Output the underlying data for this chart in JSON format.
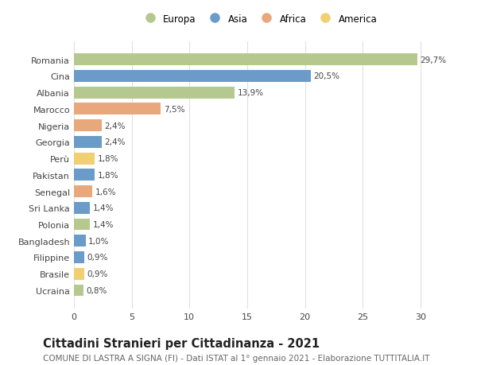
{
  "countries": [
    "Romania",
    "Cina",
    "Albania",
    "Marocco",
    "Nigeria",
    "Georgia",
    "Perù",
    "Pakistan",
    "Senegal",
    "Sri Lanka",
    "Polonia",
    "Bangladesh",
    "Filippine",
    "Brasile",
    "Ucraina"
  ],
  "values": [
    29.7,
    20.5,
    13.9,
    7.5,
    2.4,
    2.4,
    1.8,
    1.8,
    1.6,
    1.4,
    1.4,
    1.0,
    0.9,
    0.9,
    0.8
  ],
  "labels": [
    "29,7%",
    "20,5%",
    "13,9%",
    "7,5%",
    "2,4%",
    "2,4%",
    "1,8%",
    "1,8%",
    "1,6%",
    "1,4%",
    "1,4%",
    "1,0%",
    "0,9%",
    "0,9%",
    "0,8%"
  ],
  "continents": [
    "Europa",
    "Asia",
    "Europa",
    "Africa",
    "Africa",
    "Asia",
    "America",
    "Asia",
    "Africa",
    "Asia",
    "Europa",
    "Asia",
    "Asia",
    "America",
    "Europa"
  ],
  "continent_colors": {
    "Europa": "#b5c98e",
    "Asia": "#6b9bc8",
    "Africa": "#e8a87c",
    "America": "#f0d070"
  },
  "legend_order": [
    "Europa",
    "Asia",
    "Africa",
    "America"
  ],
  "title": "Cittadini Stranieri per Cittadinanza - 2021",
  "subtitle": "COMUNE DI LASTRA A SIGNA (FI) - Dati ISTAT al 1° gennaio 2021 - Elaborazione TUTTITALIA.IT",
  "xlim": [
    0,
    32
  ],
  "xticks": [
    0,
    5,
    10,
    15,
    20,
    25,
    30
  ],
  "background_color": "#ffffff",
  "grid_color": "#e0e0e0",
  "bar_height": 0.72,
  "title_fontsize": 10.5,
  "subtitle_fontsize": 7.5,
  "label_fontsize": 7.5,
  "tick_fontsize": 8,
  "legend_fontsize": 8.5
}
